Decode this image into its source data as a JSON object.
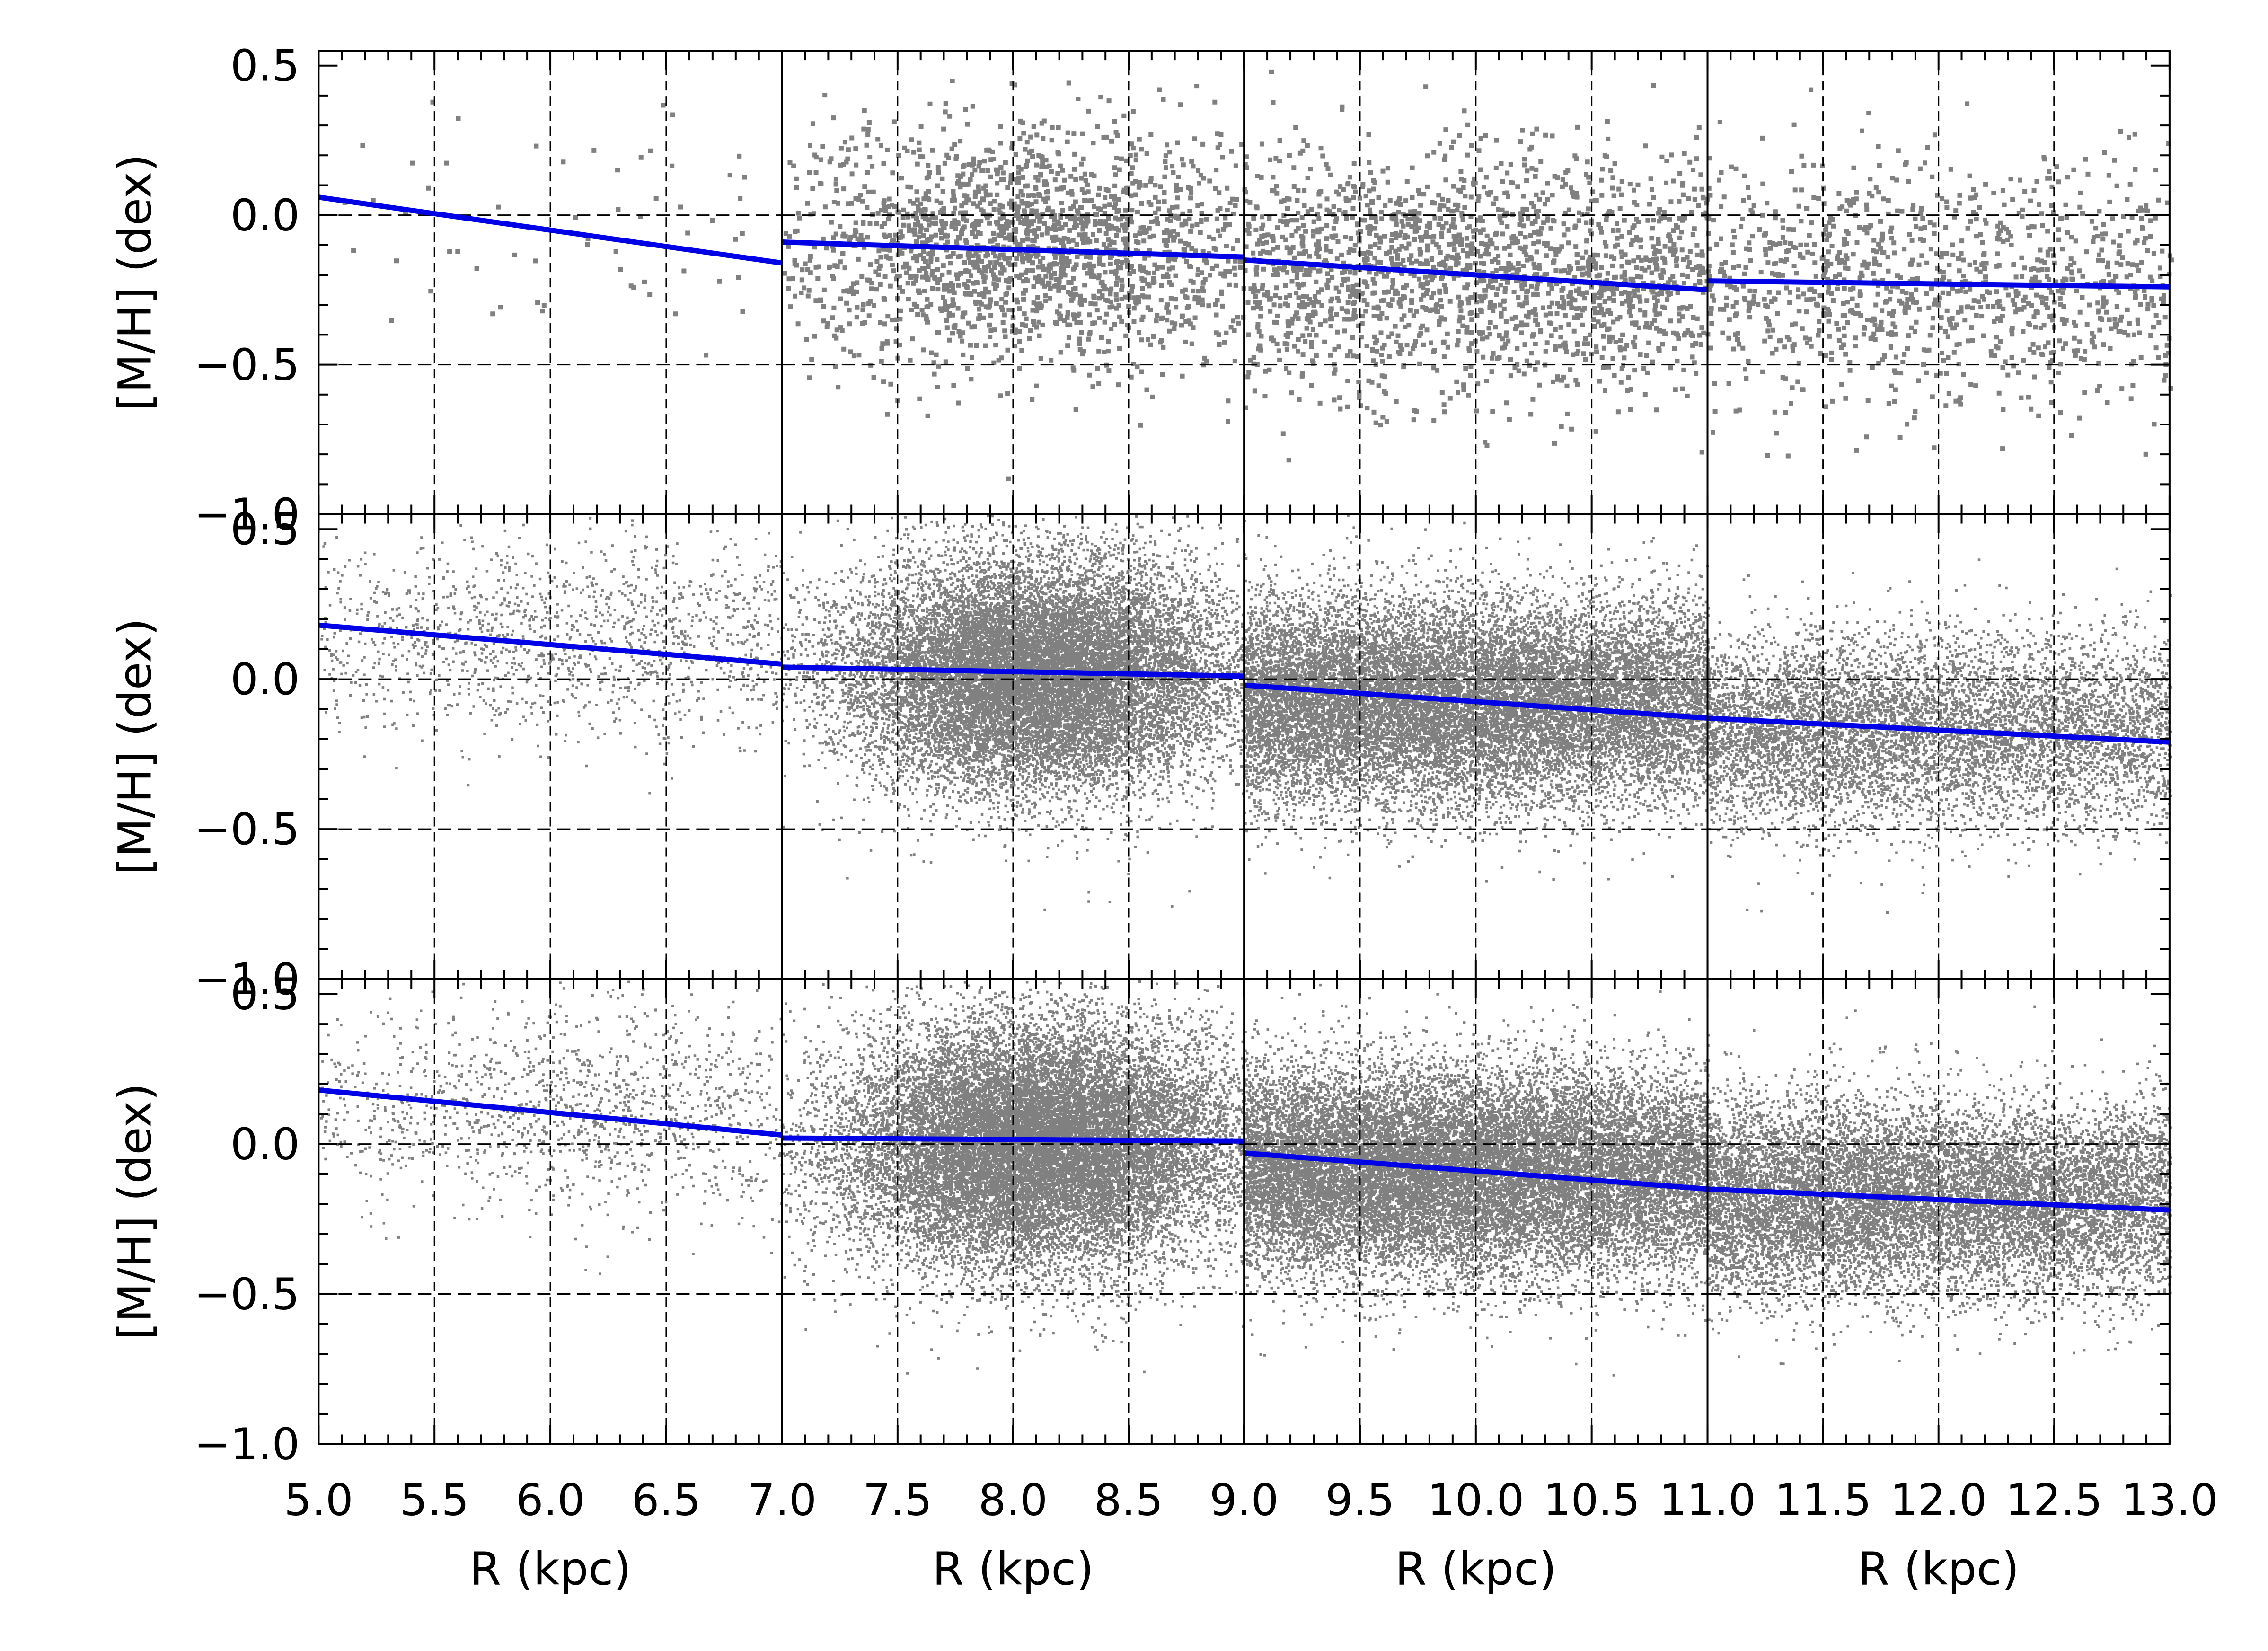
{
  "chart_data": {
    "type": "scatter",
    "layout": {
      "rows": 3,
      "cols": 4
    },
    "xlabel": "R (kpc)",
    "ylabel": "[M/H] (dex)",
    "ylim": [
      -1.0,
      0.55
    ],
    "yticks": [
      -1.0,
      -0.5,
      0.0,
      0.5
    ],
    "ytick_labels": [
      "−1.0",
      "−0.5",
      "0.0",
      "0.5"
    ],
    "grid": true,
    "point_color": "#808080",
    "fit_color": "#0000e6",
    "columns": [
      {
        "xlim": [
          5.0,
          7.0
        ],
        "xticks": [
          "5.0",
          "5.5",
          "6.0",
          "6.5",
          "7.0"
        ]
      },
      {
        "xlim": [
          7.0,
          9.0
        ],
        "xticks": [
          "7.5",
          "8.0",
          "8.5",
          "9.0"
        ]
      },
      {
        "xlim": [
          9.0,
          11.0
        ],
        "xticks": [
          "9.5",
          "10.0",
          "10.5",
          "11.0"
        ]
      },
      {
        "xlim": [
          11.0,
          13.0
        ],
        "xticks": [
          "11.5",
          "12.0",
          "12.5",
          "13.0"
        ]
      }
    ],
    "rows": [
      {
        "fits": [
          {
            "x": [
              5.0,
              7.0
            ],
            "y": [
              0.06,
              -0.16
            ]
          },
          {
            "x": [
              7.0,
              9.0
            ],
            "y": [
              -0.09,
              -0.14
            ]
          },
          {
            "x": [
              9.0,
              11.0
            ],
            "y": [
              -0.15,
              -0.25
            ]
          },
          {
            "x": [
              11.0,
              13.0
            ],
            "y": [
              -0.22,
              -0.24
            ]
          }
        ],
        "clouds": [
          {
            "n": 60,
            "xc": 6.3,
            "xs": 0.7,
            "yc": -0.05,
            "ys": 0.22,
            "xlo": 5.0,
            "xhi": 7.0
          },
          {
            "n": 1900,
            "xc": 8.05,
            "xs": 0.55,
            "yc": -0.09,
            "ys": 0.2,
            "xlo": 7.0,
            "xhi": 9.0
          },
          {
            "n": 1900,
            "xc": 10.0,
            "xs": 1.2,
            "yc": -0.18,
            "ys": 0.2,
            "xlo": 9.0,
            "xhi": 11.0
          },
          {
            "n": 1100,
            "xc": 12.0,
            "xs": 1.2,
            "yc": -0.22,
            "ys": 0.2,
            "xlo": 11.0,
            "xhi": 13.0
          }
        ]
      },
      {
        "fits": [
          {
            "x": [
              5.0,
              7.0
            ],
            "y": [
              0.18,
              0.05
            ]
          },
          {
            "x": [
              7.0,
              9.0
            ],
            "y": [
              0.04,
              0.01
            ]
          },
          {
            "x": [
              9.0,
              11.0
            ],
            "y": [
              -0.02,
              -0.13
            ]
          },
          {
            "x": [
              11.0,
              13.0
            ],
            "y": [
              -0.13,
              -0.21
            ]
          }
        ],
        "clouds": [
          {
            "n": 1400,
            "xc": 6.2,
            "xs": 0.8,
            "yc": 0.13,
            "ys": 0.17,
            "xlo": 5.0,
            "xhi": 7.0
          },
          {
            "n": 16000,
            "xc": 8.1,
            "xs": 0.42,
            "yc": 0.02,
            "ys": 0.19,
            "xlo": 7.0,
            "xhi": 9.0
          },
          {
            "n": 16000,
            "xc": 9.7,
            "xs": 1.0,
            "yc": -0.07,
            "ys": 0.17,
            "xlo": 9.0,
            "xhi": 11.0
          },
          {
            "n": 7000,
            "xc": 11.4,
            "xs": 1.2,
            "yc": -0.17,
            "ys": 0.16,
            "xlo": 11.0,
            "xhi": 13.0
          }
        ]
      },
      {
        "fits": [
          {
            "x": [
              5.0,
              7.0
            ],
            "y": [
              0.18,
              0.03
            ]
          },
          {
            "x": [
              7.0,
              9.0
            ],
            "y": [
              0.02,
              0.01
            ]
          },
          {
            "x": [
              9.0,
              11.0
            ],
            "y": [
              -0.03,
              -0.15
            ]
          },
          {
            "x": [
              11.0,
              13.0
            ],
            "y": [
              -0.15,
              -0.22
            ]
          }
        ],
        "clouds": [
          {
            "n": 1300,
            "xc": 6.2,
            "xs": 0.8,
            "yc": 0.12,
            "ys": 0.17,
            "xlo": 5.0,
            "xhi": 7.0
          },
          {
            "n": 18000,
            "xc": 8.1,
            "xs": 0.42,
            "yc": 0.0,
            "ys": 0.2,
            "xlo": 7.0,
            "xhi": 9.0
          },
          {
            "n": 18000,
            "xc": 9.7,
            "xs": 1.0,
            "yc": -0.09,
            "ys": 0.17,
            "xlo": 9.0,
            "xhi": 11.0
          },
          {
            "n": 11000,
            "xc": 11.5,
            "xs": 1.2,
            "yc": -0.18,
            "ys": 0.16,
            "xlo": 11.0,
            "xhi": 13.0
          }
        ]
      }
    ]
  }
}
